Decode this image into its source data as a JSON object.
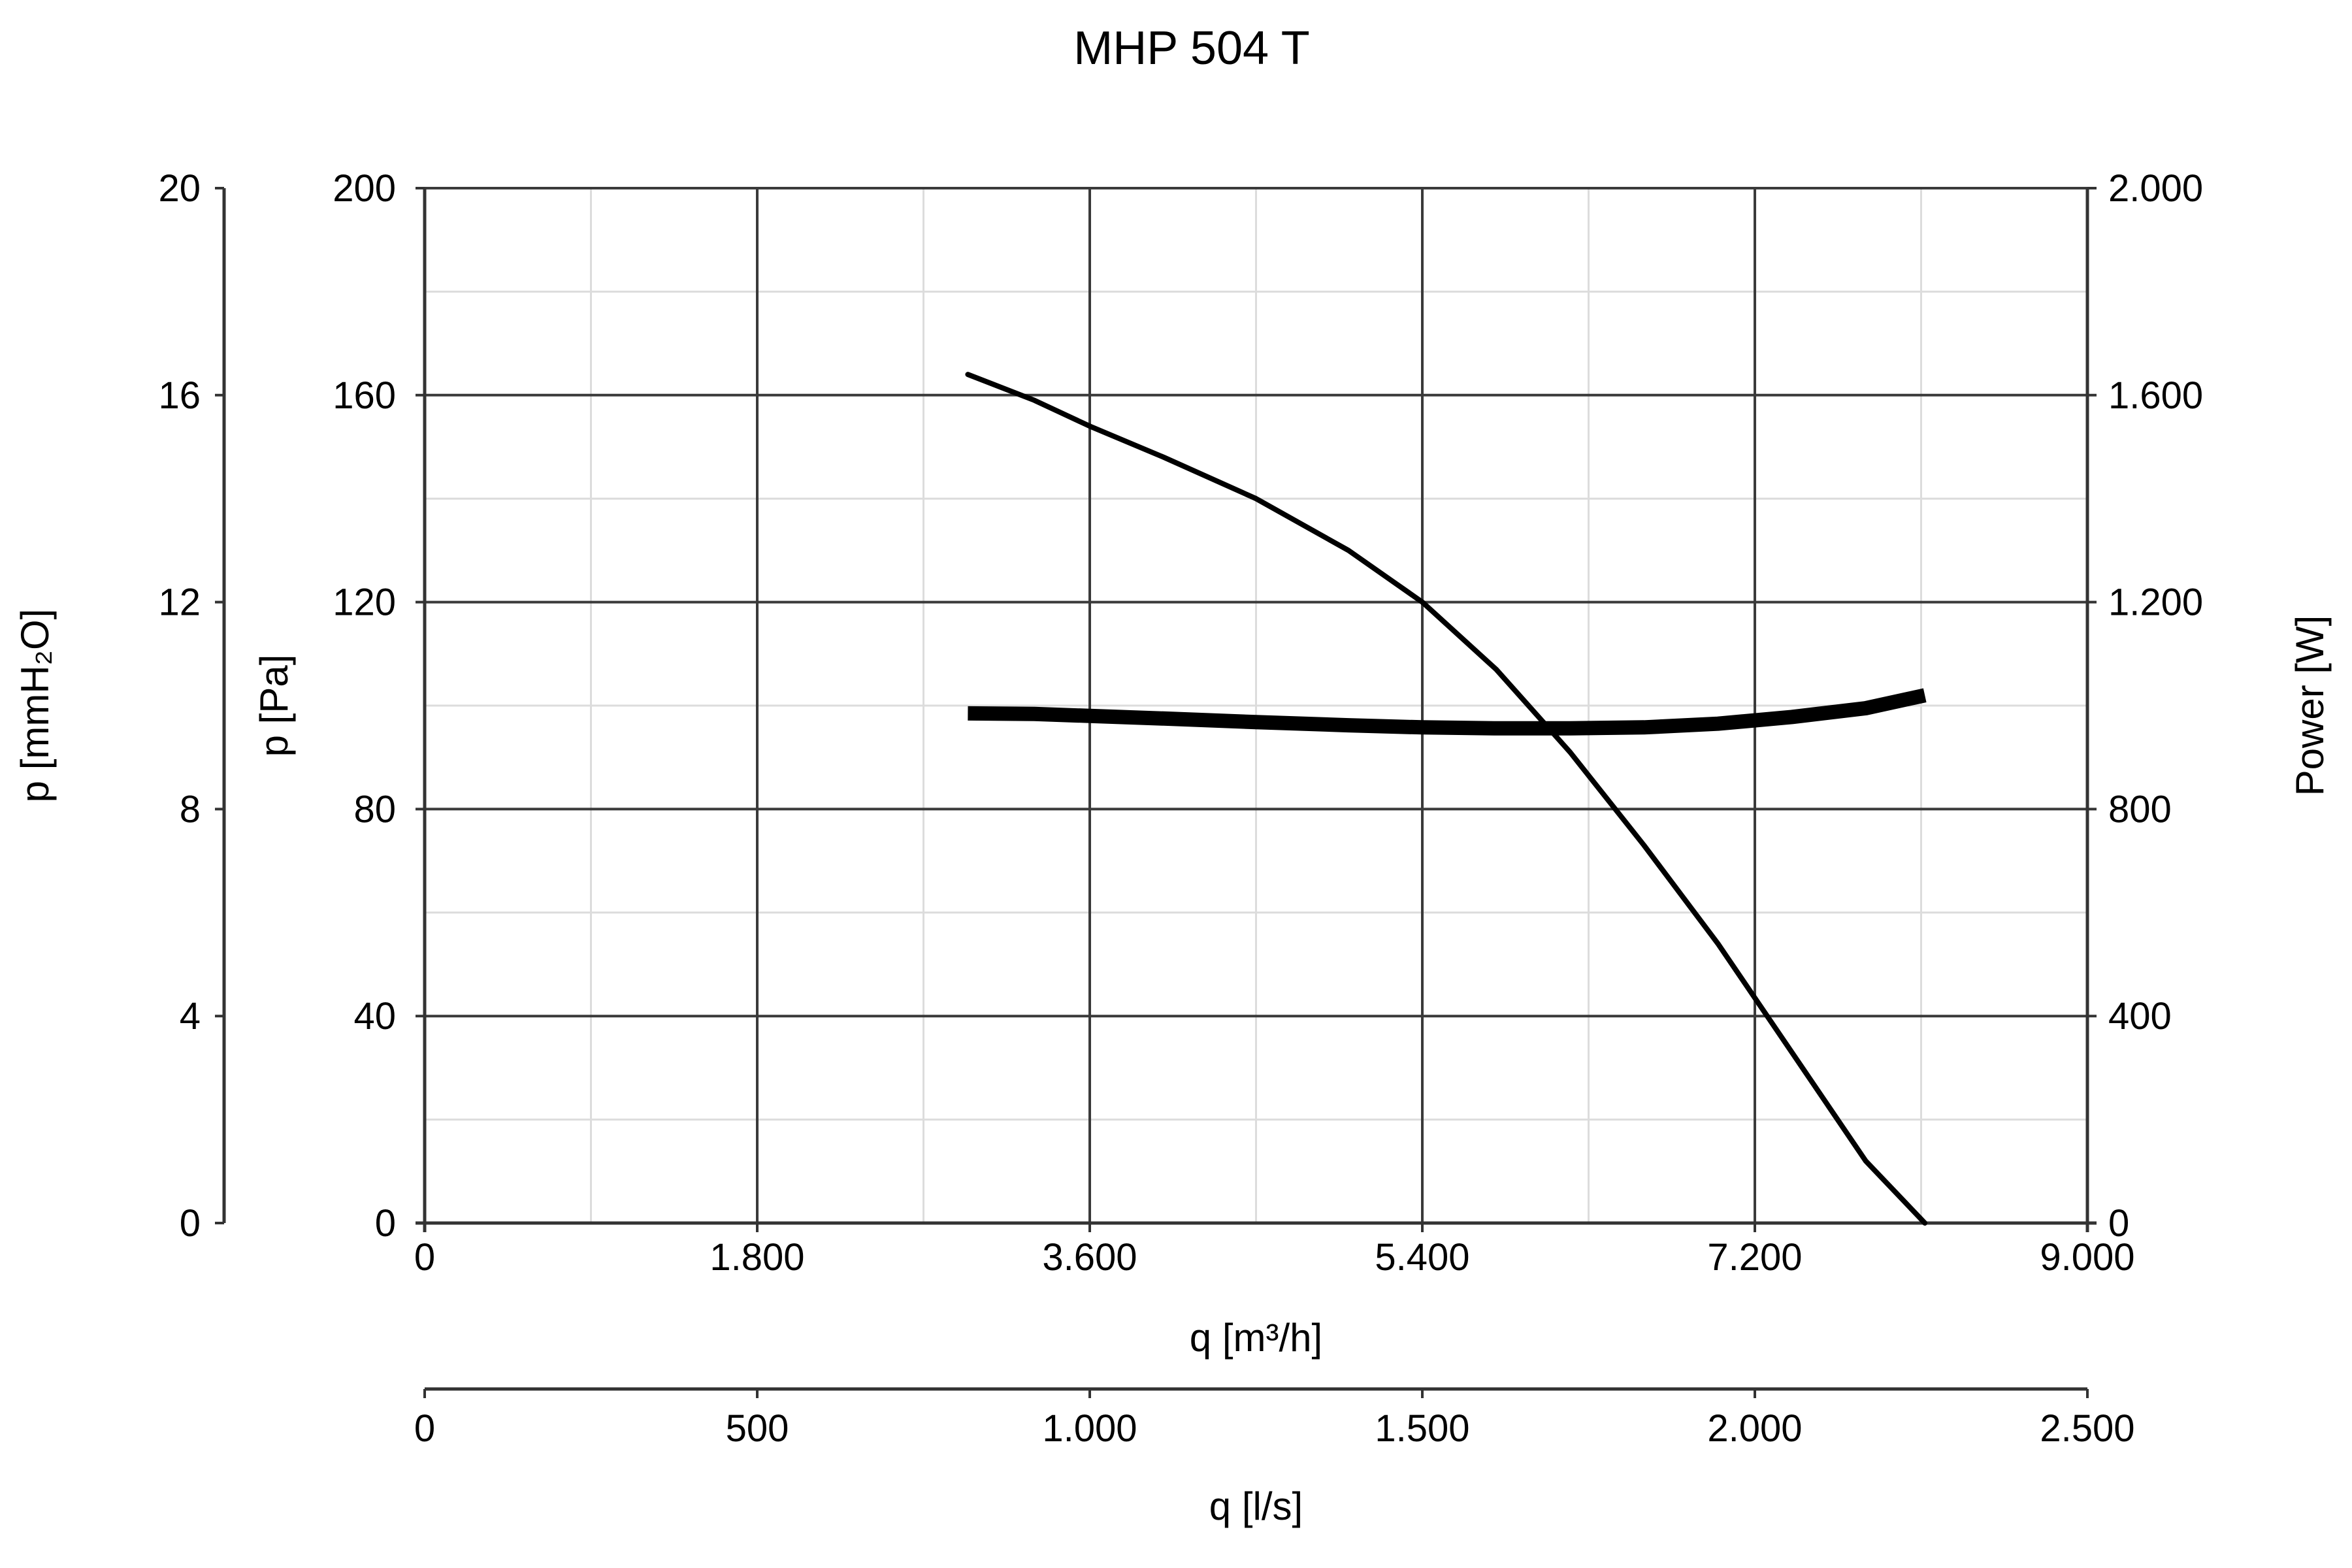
{
  "chart_data": {
    "type": "line",
    "title": "MHP 504 T",
    "x_axis": {
      "label": "q [m³/h]",
      "range": [
        0,
        9000
      ],
      "ticks": [
        0,
        1800,
        3600,
        5400,
        7200,
        9000
      ],
      "tick_labels": [
        "0",
        "1.800",
        "3.600",
        "5.400",
        "7.200",
        "9.000"
      ]
    },
    "x2_axis": {
      "label": "q [l/s]",
      "range": [
        0,
        2500
      ],
      "ticks": [
        0,
        500,
        1000,
        1500,
        2000,
        2500
      ],
      "tick_labels": [
        "0",
        "500",
        "1.000",
        "1.500",
        "2.000",
        "2.500"
      ]
    },
    "y_axis": {
      "label": "p [Pa]",
      "range": [
        0,
        200
      ],
      "ticks": [
        0,
        40,
        80,
        120,
        160,
        200
      ],
      "tick_labels": [
        "0",
        "40",
        "80",
        "120",
        "160",
        "200"
      ]
    },
    "y_left_outer_axis": {
      "label": "p [mmH₂O]",
      "range": [
        0,
        20
      ],
      "ticks": [
        0,
        4,
        8,
        12,
        16,
        20
      ],
      "tick_labels": [
        "0",
        "4",
        "8",
        "12",
        "16",
        "20"
      ]
    },
    "y_right_axis": {
      "label": "Power [W]",
      "range": [
        0,
        2000
      ],
      "ticks": [
        0,
        400,
        800,
        1200,
        1600,
        2000
      ],
      "tick_labels": [
        "0",
        "400",
        "800",
        "1.200",
        "1.600",
        "2.000"
      ]
    },
    "grid": true,
    "series": [
      {
        "axis": "pressure",
        "x": [
          2940,
          3300,
          3600,
          4000,
          4500,
          5000,
          5400,
          5800,
          6200,
          6600,
          7000,
          7400,
          7800,
          8120
        ],
        "y": [
          164,
          159,
          154,
          148,
          140,
          130,
          120,
          107,
          91,
          73,
          54,
          33,
          12,
          0
        ]
      },
      {
        "axis": "power",
        "x": [
          2940,
          3300,
          3600,
          4000,
          4500,
          5000,
          5400,
          5800,
          6200,
          6600,
          7000,
          7400,
          7800,
          8120
        ],
        "y": [
          985,
          984,
          980,
          975,
          968,
          962,
          958,
          956,
          956,
          958,
          965,
          978,
          995,
          1020
        ]
      }
    ]
  }
}
